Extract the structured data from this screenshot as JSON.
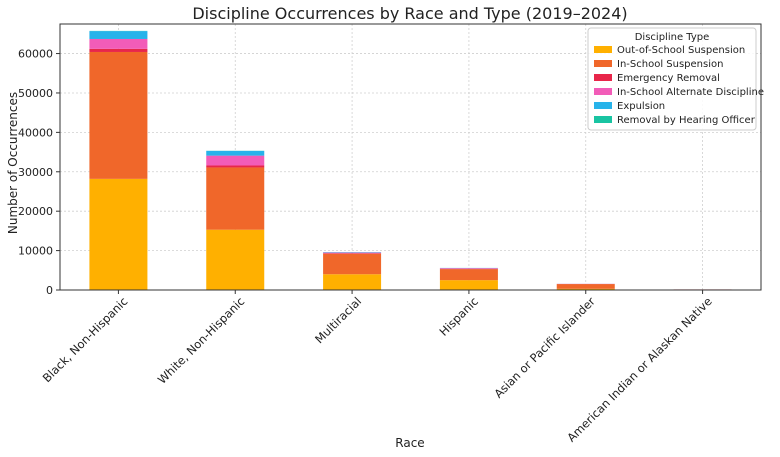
{
  "chart_data": {
    "type": "bar",
    "stacked": true,
    "title": "Discipline Occurrences by Race and Type (2019–2024)",
    "xlabel": "Race",
    "ylabel": "Number of Occurrences",
    "ylim": [
      0,
      67500
    ],
    "yticks": [
      0,
      10000,
      20000,
      30000,
      40000,
      50000,
      60000
    ],
    "grid": true,
    "legend_title": "Discipline Type",
    "legend_position": "top-right",
    "categories": [
      "Black, Non-Hispanic",
      "White, Non-Hispanic",
      "Multiracial",
      "Hispanic",
      "Asian or Pacific Islander",
      "American Indian or Alaskan Native"
    ],
    "series": [
      {
        "name": "Out-of-School Suspension",
        "color": "#FFB000",
        "values": [
          28200,
          15300,
          4000,
          2500,
          300,
          60
        ]
      },
      {
        "name": "In-School Suspension",
        "color": "#F0672A",
        "values": [
          32200,
          15800,
          5200,
          2800,
          1200,
          80
        ]
      },
      {
        "name": "Emergency Removal",
        "color": "#E8264A",
        "values": [
          800,
          500,
          150,
          100,
          30,
          5
        ]
      },
      {
        "name": "In-School Alternate Discipline",
        "color": "#F25CB8",
        "values": [
          2500,
          2500,
          150,
          150,
          30,
          5
        ]
      },
      {
        "name": "Expulsion",
        "color": "#27B3EA",
        "values": [
          2000,
          1200,
          100,
          50,
          10,
          2
        ]
      },
      {
        "name": "Removal by Hearing Officer",
        "color": "#19C4A2",
        "values": [
          50,
          30,
          10,
          5,
          2,
          1
        ]
      }
    ]
  }
}
